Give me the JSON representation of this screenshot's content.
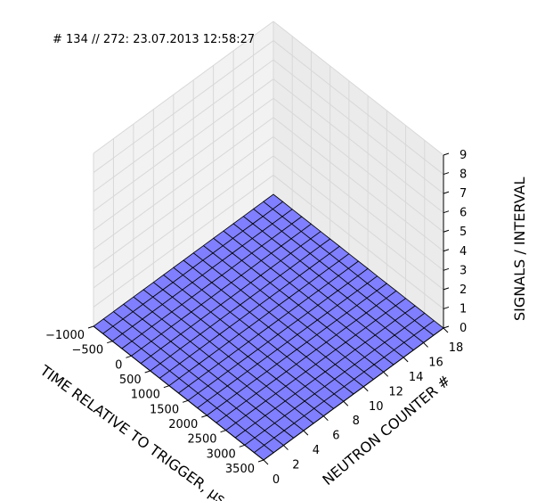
{
  "chart_data": {
    "type": "3d-surface-waterfall",
    "header": "# 134 // 272: 23.07.2013 12:58:27",
    "xlabel": "TIME RELATIVE TO TRIGGER, µs",
    "ylabel": "NEUTRON COUNTER #",
    "zlabel": "SIGNALS / INTERVAL",
    "xlim": [
      -1000,
      3500
    ],
    "ylim": [
      0,
      18
    ],
    "zlim": [
      0,
      9
    ],
    "x_ticks": [
      "−1000",
      "−500",
      "0",
      "500",
      "1000",
      "1500",
      "2000",
      "2500",
      "3000",
      "3500"
    ],
    "y_ticks": [
      "0",
      "2",
      "4",
      "6",
      "8",
      "10",
      "12",
      "14",
      "16",
      "18"
    ],
    "z_ticks": [
      "0",
      "1",
      "2",
      "3",
      "4",
      "5",
      "6",
      "7",
      "8",
      "9"
    ],
    "grid": true,
    "colors": {
      "face": "#7f7fff",
      "edge": "#000000",
      "pane": "#ebebeb",
      "grid": "#d8d8d8"
    },
    "time_bins": [
      -1000,
      -750,
      -500,
      -250,
      0,
      250,
      500,
      750,
      1000,
      1250,
      1500,
      1750,
      2000,
      2250,
      2500,
      2750,
      3000,
      3250,
      3500
    ],
    "counters": [
      {
        "counter": 0,
        "values": [
          0,
          0,
          0,
          0,
          0,
          0,
          0,
          0,
          0,
          0,
          0,
          0,
          0,
          0,
          0,
          0,
          0,
          0,
          0
        ]
      },
      {
        "counter": 1,
        "values": [
          0,
          0,
          0,
          0,
          0,
          0,
          0,
          0,
          0,
          0,
          0,
          0,
          0,
          0,
          0,
          0,
          0,
          0,
          0
        ]
      },
      {
        "counter": 2,
        "values": [
          0,
          0,
          0,
          0,
          0,
          0,
          0,
          0,
          0,
          0,
          0,
          0,
          0,
          0,
          0,
          0,
          0,
          0,
          0
        ]
      },
      {
        "counter": 3,
        "values": [
          0,
          0,
          0,
          0,
          0,
          0,
          0,
          0,
          0,
          0,
          0,
          0,
          0,
          0,
          0,
          0,
          0,
          0,
          0
        ]
      },
      {
        "counter": 4,
        "values": [
          0,
          0,
          0,
          0,
          0,
          0,
          0,
          0,
          0,
          0,
          0,
          0,
          0,
          0,
          0,
          0,
          0,
          0,
          0
        ]
      },
      {
        "counter": 5,
        "values": [
          0,
          0,
          0,
          0,
          0,
          0,
          0,
          0,
          0,
          0,
          0,
          0,
          0,
          0,
          0,
          0,
          0,
          0,
          0
        ]
      },
      {
        "counter": 6,
        "values": [
          0,
          0,
          0,
          0,
          0,
          0,
          0,
          0,
          0,
          0,
          0,
          0,
          0,
          0,
          0,
          0,
          0,
          0,
          0
        ]
      },
      {
        "counter": 7,
        "values": [
          0,
          0,
          0,
          0,
          0,
          0,
          0,
          0,
          0,
          0,
          0,
          0,
          0,
          0,
          0,
          0,
          0,
          0,
          0
        ]
      },
      {
        "counter": 8,
        "values": [
          0,
          0,
          0,
          0,
          0,
          0,
          0,
          0,
          0,
          0,
          0,
          0,
          0,
          0,
          0,
          0,
          0,
          0,
          0
        ]
      },
      {
        "counter": 9,
        "values": [
          0,
          0,
          0,
          0,
          0,
          0,
          0,
          0,
          0,
          0,
          0,
          0,
          0,
          0,
          0,
          0,
          0,
          0,
          0
        ]
      },
      {
        "counter": 10,
        "values": [
          0,
          0,
          0,
          0,
          0,
          0,
          0,
          0,
          0,
          0,
          0,
          0,
          0,
          0,
          0,
          0,
          0,
          0,
          0
        ]
      },
      {
        "counter": 11,
        "values": [
          0,
          0,
          0,
          0,
          0,
          0,
          0,
          0,
          0,
          0,
          0,
          0,
          0,
          0,
          0,
          0,
          0,
          0,
          0
        ]
      },
      {
        "counter": 12,
        "values": [
          0,
          0,
          0,
          0,
          0,
          0,
          0,
          0,
          0,
          0,
          0,
          0,
          0,
          0,
          0,
          0,
          0,
          0,
          0
        ]
      },
      {
        "counter": 13,
        "values": [
          0,
          0,
          0,
          0,
          0,
          0,
          0,
          0,
          0,
          0,
          0,
          0,
          0,
          0,
          0,
          0,
          0,
          0,
          0
        ]
      },
      {
        "counter": 14,
        "values": [
          0,
          0,
          0,
          0,
          0,
          0,
          0,
          0,
          0,
          0,
          0,
          0,
          0,
          0,
          0,
          0,
          0,
          0,
          0
        ]
      },
      {
        "counter": 15,
        "values": [
          0,
          0,
          0,
          0,
          0,
          0,
          0,
          0,
          0,
          0,
          0,
          0,
          0,
          0,
          0,
          0,
          0,
          0,
          0
        ]
      },
      {
        "counter": 16,
        "values": [
          0,
          0,
          0,
          0,
          0,
          0,
          0,
          0,
          0,
          0,
          0,
          0,
          0,
          0,
          0,
          0,
          0,
          0,
          0
        ]
      },
      {
        "counter": 17,
        "values": [
          0,
          0,
          0,
          0,
          0,
          0,
          0,
          0,
          0,
          0,
          0,
          0,
          0,
          0,
          0,
          0,
          0,
          0,
          0
        ]
      }
    ]
  }
}
